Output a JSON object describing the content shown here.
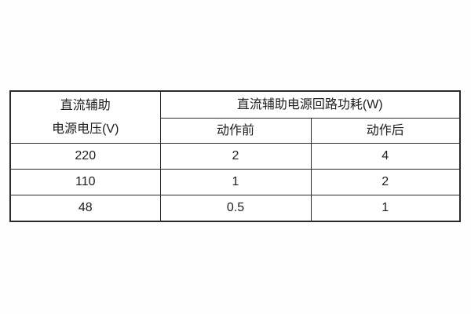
{
  "table": {
    "header": {
      "voltage_col_line1": "直流辅助",
      "voltage_col_line2": "电源电压(V)",
      "consumption_group_label": "直流辅助电源回路功耗(W)",
      "sub_before": "动作前",
      "sub_after": "动作后"
    },
    "rows": [
      {
        "voltage": "220",
        "before": "2",
        "after": "4"
      },
      {
        "voltage": "110",
        "before": "1",
        "after": "2"
      },
      {
        "voltage": "48",
        "before": "0.5",
        "after": "1"
      }
    ],
    "colors": {
      "border": "#2b2b2b",
      "text": "#1d1d1d",
      "background": "#ffffff"
    }
  },
  "chart_data": {
    "type": "table",
    "title": "直流辅助电源回路功耗(W)",
    "categories": [
      "220",
      "110",
      "48"
    ],
    "series": [
      {
        "name": "动作前",
        "values": [
          2,
          1,
          0.5
        ]
      },
      {
        "name": "动作后",
        "values": [
          4,
          2,
          1
        ]
      }
    ],
    "xlabel": "直流辅助电源电压(V)",
    "ylabel": "功耗(W)"
  }
}
